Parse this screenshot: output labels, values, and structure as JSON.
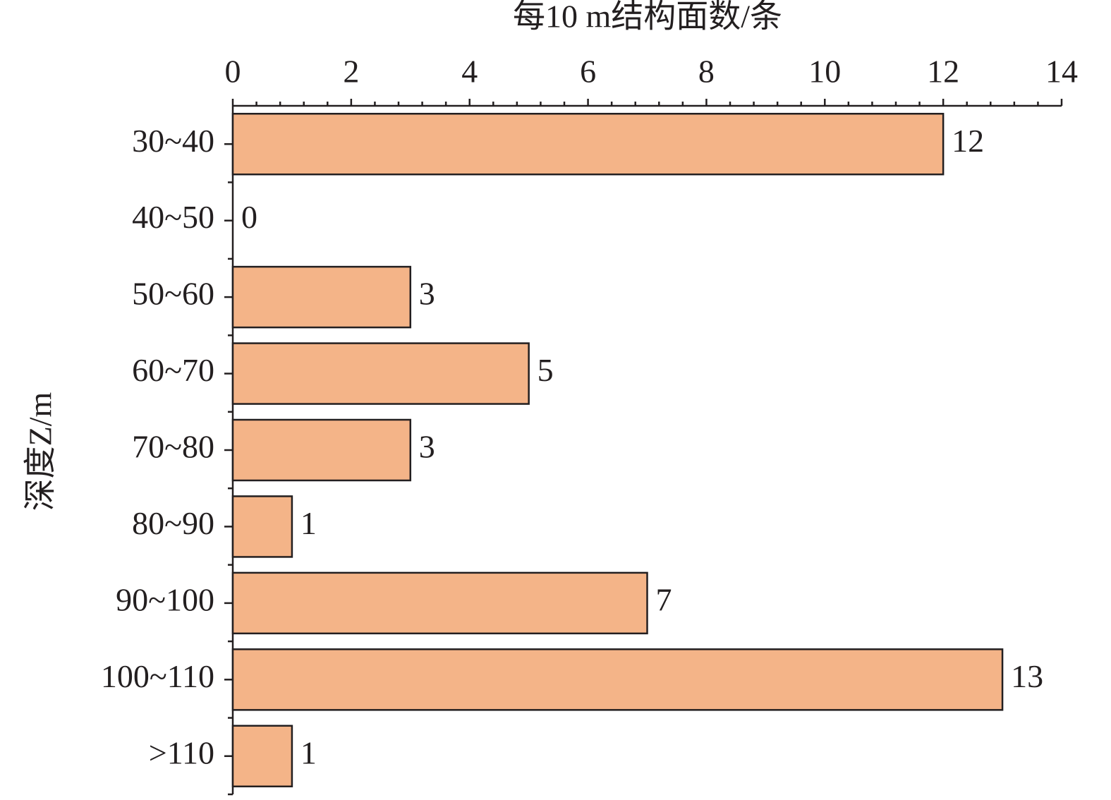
{
  "chart_data": {
    "type": "barh",
    "xlabel": "每10 m结构面数/条",
    "ylabel": "深度Z/m",
    "categories": [
      "30~40",
      "40~50",
      "50~60",
      "60~70",
      "70~80",
      "80~90",
      "90~100",
      "100~110",
      ">110"
    ],
    "values": [
      12,
      0,
      3,
      5,
      3,
      1,
      7,
      13,
      1
    ],
    "color": "#f4b488",
    "xlim": [
      0,
      14
    ],
    "xticks": [
      0,
      2,
      4,
      6,
      8,
      10,
      12,
      14
    ]
  }
}
